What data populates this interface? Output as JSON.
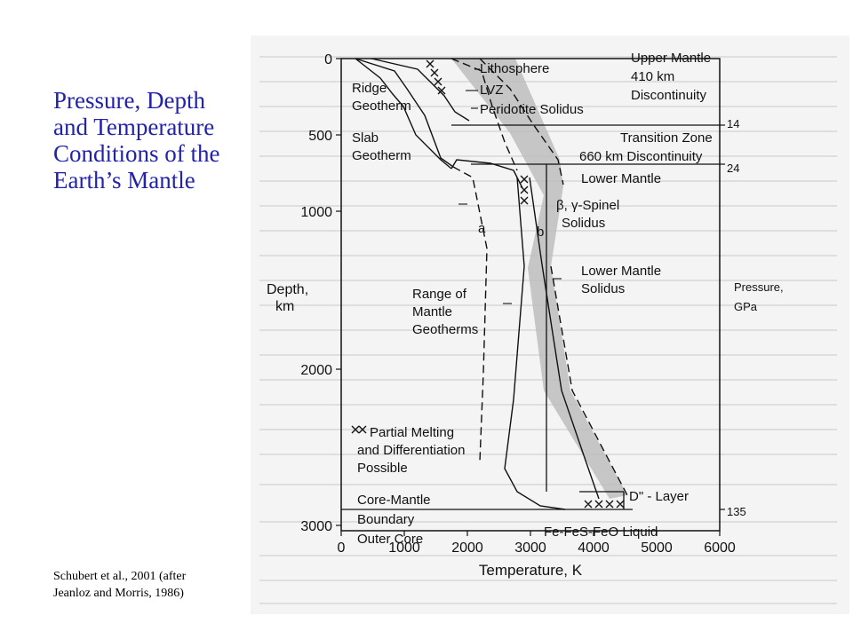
{
  "slide": {
    "title_lines": [
      "Pressure, Depth",
      "and Temperature",
      "Conditions of the",
      "Earth’s Mantle"
    ],
    "citation_lines": [
      "Schubert et al., 2001 (after",
      "Jeanloz and Morris, 1986)"
    ]
  },
  "chart_data": {
    "type": "diagram",
    "xlabel": "Temperature, K",
    "ylabel_lines": [
      "Depth,",
      "km"
    ],
    "xticks": [
      "0",
      "1000",
      "2000",
      "3000",
      "4000",
      "5000",
      "6000"
    ],
    "yticks": [
      "0",
      "500",
      "1000",
      "2000",
      "3000"
    ],
    "xlim": [
      0,
      6000
    ],
    "ylim": [
      0,
      3200
    ],
    "pressure": {
      "label_lines": [
        "Pressure,",
        "GPa"
      ],
      "ticks": [
        "14",
        "24",
        "135"
      ]
    },
    "labels": {
      "lithosphere": "Lithosphere",
      "lvz": "LVZ",
      "peridotite_solidus": "Peridotite Solidus",
      "upper_mantle": "Upper Mantle",
      "disc410": [
        "410 km",
        "Discontinuity"
      ],
      "transition_zone": "Transition Zone",
      "disc660": "660 km Discontinuity",
      "lower_mantle": "Lower Mantle",
      "ridge_geotherm": [
        "Ridge",
        "Geotherm"
      ],
      "slab_geotherm": [
        "Slab",
        "Geotherm"
      ],
      "spinel_solidus": [
        "β, γ-Spinel",
        "Solidus"
      ],
      "curve_a": "a",
      "curve_b": "b",
      "lower_mantle_solidus": [
        "Lower Mantle",
        "Solidus"
      ],
      "range_geotherms": [
        "Range of",
        "Mantle",
        "Geotherms"
      ],
      "partial_melting": [
        "Partial Melting",
        "and Differentiation",
        "Possible"
      ],
      "d_layer": "D\" - Layer",
      "core_mantle_boundary": [
        "Core-Mantle",
        "Boundary"
      ],
      "outer_core": "Outer Core",
      "fe_liquid": "Fe-FeS-FeO  Liquid"
    }
  }
}
